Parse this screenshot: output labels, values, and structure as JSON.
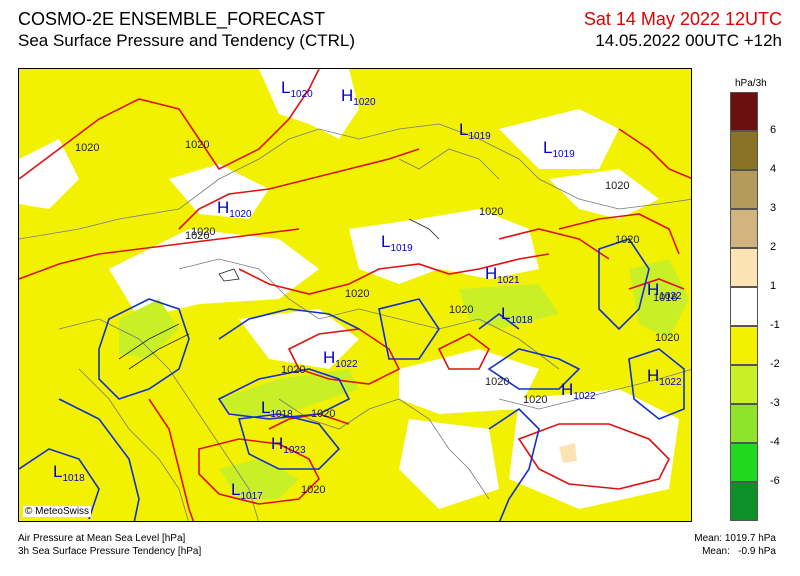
{
  "header": {
    "title": "COSMO-2E ENSEMBLE_FORECAST",
    "subtitle": "Sea Surface Pressure and Tendency (CTRL)",
    "valid_time": "Sat 14 May 2022 12UTC",
    "run_time": "14.05.2022 00UTC +12h"
  },
  "map": {
    "copyright": "© MeteoSwiss",
    "isobar_labels": [
      {
        "text": "1020"
      },
      {
        "text": "1020"
      },
      {
        "text": "1020"
      },
      {
        "text": "1020"
      },
      {
        "text": "1020"
      },
      {
        "text": "1020"
      },
      {
        "text": "1020"
      },
      {
        "text": "1020"
      },
      {
        "text": "1020"
      },
      {
        "text": "1020"
      },
      {
        "text": "1020"
      },
      {
        "text": "1020"
      },
      {
        "text": "1020"
      },
      {
        "text": "1020"
      },
      {
        "text": "1018"
      },
      {
        "text": "1020"
      }
    ],
    "pressure_centers": [
      {
        "type": "L",
        "value": "1020"
      },
      {
        "type": "H",
        "value": "1020"
      },
      {
        "type": "L",
        "value": "1019"
      },
      {
        "type": "L",
        "value": "1019"
      },
      {
        "type": "H",
        "value": "1020"
      },
      {
        "type": "L",
        "value": "1019"
      },
      {
        "type": "H",
        "value": "1021"
      },
      {
        "type": "H",
        "value": "1022"
      },
      {
        "type": "L",
        "value": "1018"
      },
      {
        "type": "H",
        "value": "1022"
      },
      {
        "type": "H",
        "value": "1022"
      },
      {
        "type": "H",
        "value": "1022"
      },
      {
        "type": "L",
        "value": "1018"
      },
      {
        "type": "H",
        "value": "1023"
      },
      {
        "type": "L",
        "value": "1017"
      },
      {
        "type": "L",
        "value": "1018"
      }
    ]
  },
  "legend": {
    "unit": "hPa/3h",
    "tick_labels": [
      "6",
      "4",
      "3",
      "2",
      "1",
      "-1",
      "-2",
      "-3",
      "-4",
      "-6"
    ],
    "colors": [
      "#6b0f0f",
      "#8b7326",
      "#b59a5e",
      "#d2b47e",
      "#fde3b4",
      "#ffffff",
      "#f2f200",
      "#c9ef26",
      "#8fe32a",
      "#20d820",
      "#0d8f2a"
    ]
  },
  "footer": {
    "line1": "Air Pressure at Mean Sea Level [hPa]",
    "line2": "3h Sea Surface Pressure Tendency [hPa]",
    "mean_pressure": "Mean: 1019.7 hPa",
    "mean_tendency": "Mean:   -0.9 hPa"
  }
}
